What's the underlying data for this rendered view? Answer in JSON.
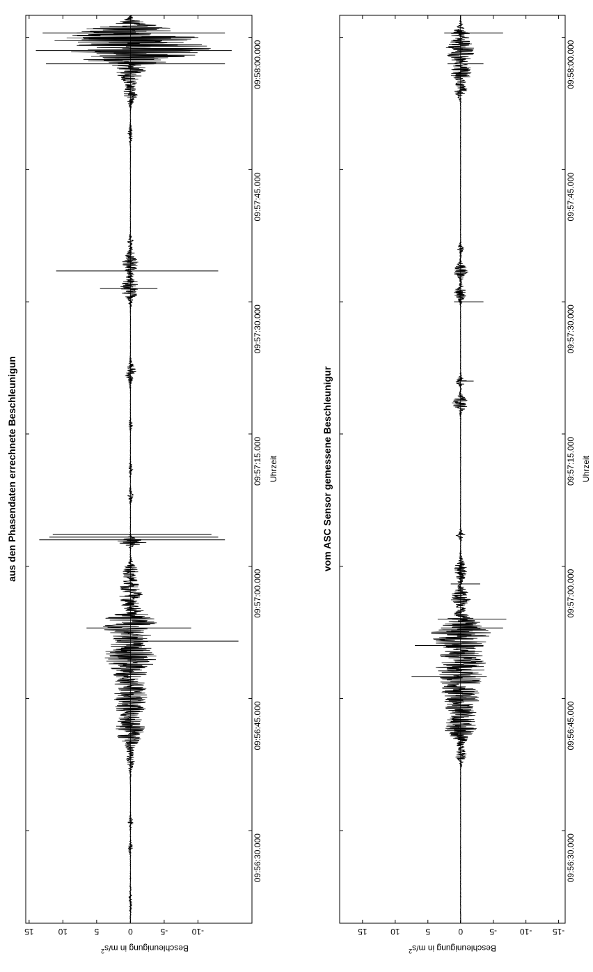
{
  "chart_data": [
    {
      "type": "line",
      "title": "aus den Phasendaten errechnete Beschleunigun",
      "xlabel": "Uhrzeit",
      "ylabel": "Beschleunigung in m/s^2",
      "x_tick_labels": [
        "09:56:30.000",
        "09:56:45.000",
        "09:57:00.000",
        "09:57:15.000",
        "09:57:30.000",
        "09:57:45.000",
        "09:58:00.000"
      ],
      "x_ticks_seconds": [
        30,
        45,
        60,
        75,
        90,
        105,
        120
      ],
      "xlim_seconds": [
        19.5,
        122.5
      ],
      "y_tick_labels": [
        "15",
        "10",
        "5",
        "0",
        "-5",
        "-10"
      ],
      "y_ticks": [
        15,
        10,
        5,
        0,
        -5,
        -10
      ],
      "ylim": [
        15.5,
        -18
      ],
      "grid": false,
      "series": [
        {
          "bursts": [
            {
              "t": 22,
              "amp": 0.15,
              "w": 1.5
            },
            {
              "t": 28,
              "amp": 0.3,
              "w": 0.6
            },
            {
              "t": 31,
              "amp": 0.4,
              "w": 0.5
            },
            {
              "t": 38,
              "amp": 0.5,
              "w": 1.0
            },
            {
              "t": 41,
              "amp": 1.2,
              "w": 1.2
            },
            {
              "t": 45,
              "amp": 2.5,
              "w": 4.0
            },
            {
              "t": 50,
              "amp": 3.3,
              "w": 2.0
            },
            {
              "t": 53.5,
              "amp": 4.2,
              "w": 1.5
            },
            {
              "t": 57,
              "amp": 1.8,
              "w": 1.5
            },
            {
              "t": 59.5,
              "amp": 1.0,
              "w": 1.0
            },
            {
              "t": 62.8,
              "amp": 2.5,
              "w": 0.4
            },
            {
              "t": 68,
              "amp": 0.4,
              "w": 0.6
            },
            {
              "t": 71,
              "amp": 0.3,
              "w": 0.6
            },
            {
              "t": 76,
              "amp": 0.3,
              "w": 0.5
            },
            {
              "t": 82,
              "amp": 0.9,
              "w": 1.0
            },
            {
              "t": 91.5,
              "amp": 1.5,
              "w": 1.2
            },
            {
              "t": 94.5,
              "amp": 1.2,
              "w": 1.3
            },
            {
              "t": 97,
              "amp": 0.4,
              "w": 0.5
            },
            {
              "t": 109,
              "amp": 0.4,
              "w": 0.8
            },
            {
              "t": 113.5,
              "amp": 1.0,
              "w": 1.0
            },
            {
              "t": 116,
              "amp": 2.0,
              "w": 1.2
            },
            {
              "t": 118,
              "amp": 8.0,
              "w": 1.0
            },
            {
              "t": 119.5,
              "amp": 11.0,
              "w": 1.2
            },
            {
              "t": 121,
              "amp": 4.0,
              "w": 0.8
            }
          ],
          "spikes": [
            {
              "t": 51.5,
              "min": -16.0,
              "max": 2.0
            },
            {
              "t": 53.0,
              "min": -9.0,
              "max": 6.5
            },
            {
              "t": 63.0,
              "min": -14.0,
              "max": 13.5
            },
            {
              "t": 63.3,
              "min": -13.0,
              "max": 12.0
            },
            {
              "t": 63.6,
              "min": -12.0,
              "max": 11.5
            },
            {
              "t": 91.5,
              "min": -4.0,
              "max": 4.5
            },
            {
              "t": 93.5,
              "min": -13.0,
              "max": 11.0
            },
            {
              "t": 117.0,
              "min": -14.0,
              "max": 12.5
            },
            {
              "t": 118.5,
              "min": -15.0,
              "max": 14.0
            },
            {
              "t": 120.5,
              "min": -14.0,
              "max": 13.0
            }
          ]
        }
      ]
    },
    {
      "type": "line",
      "title": "vom ASC Sensor gemessene Beschleunigur",
      "xlabel": "Uhrzeit",
      "ylabel": "Beschleunigung in m/s^2",
      "x_tick_labels": [
        "09:56:30.000",
        "09:56:45.000",
        "09:57:00.000",
        "09:57:15.000",
        "09:57:30.000",
        "09:57:45.000",
        "09:58:00.000"
      ],
      "x_ticks_seconds": [
        30,
        45,
        60,
        75,
        90,
        105,
        120
      ],
      "xlim_seconds": [
        19.5,
        122.5
      ],
      "y_tick_labels": [
        "15",
        "10",
        "5",
        "0",
        "-5",
        "-10",
        "-15"
      ],
      "y_ticks": [
        15,
        10,
        5,
        0,
        -5,
        -10,
        -15
      ],
      "ylim": [
        18.5,
        -16
      ],
      "grid": false,
      "series": [
        {
          "bursts": [
            {
              "t": 38.5,
              "amp": 0.8,
              "w": 0.8
            },
            {
              "t": 41.5,
              "amp": 1.5,
              "w": 1.2
            },
            {
              "t": 45,
              "amp": 2.8,
              "w": 3.5
            },
            {
              "t": 49,
              "amp": 3.2,
              "w": 2.0
            },
            {
              "t": 52.5,
              "amp": 4.5,
              "w": 1.8
            },
            {
              "t": 56.5,
              "amp": 1.5,
              "w": 1.0
            },
            {
              "t": 59.5,
              "amp": 1.0,
              "w": 1.2
            },
            {
              "t": 63.5,
              "amp": 0.7,
              "w": 0.4
            },
            {
              "t": 78.5,
              "amp": 1.3,
              "w": 0.8
            },
            {
              "t": 81,
              "amp": 0.9,
              "w": 0.5
            },
            {
              "t": 91,
              "amp": 1.0,
              "w": 0.8
            },
            {
              "t": 93.5,
              "amp": 1.2,
              "w": 0.8
            },
            {
              "t": 96,
              "amp": 0.5,
              "w": 0.5
            },
            {
              "t": 114,
              "amp": 1.0,
              "w": 0.8
            },
            {
              "t": 116,
              "amp": 1.8,
              "w": 1.0
            },
            {
              "t": 118.5,
              "amp": 2.5,
              "w": 1.2
            },
            {
              "t": 120.5,
              "amp": 1.2,
              "w": 0.8
            }
          ],
          "spikes": [
            {
              "t": 47.5,
              "min": -4.0,
              "max": 7.5
            },
            {
              "t": 51.0,
              "min": -3.5,
              "max": 7.0
            },
            {
              "t": 53.0,
              "min": -6.5,
              "max": 3.0
            },
            {
              "t": 54.0,
              "min": -7.0,
              "max": 3.5
            },
            {
              "t": 58.0,
              "min": -3.0,
              "max": 1.5
            },
            {
              "t": 81.0,
              "min": -2.0,
              "max": 0.5
            },
            {
              "t": 90.0,
              "min": -3.5,
              "max": 1.0
            },
            {
              "t": 117.0,
              "min": -3.5,
              "max": 2.0
            },
            {
              "t": 120.5,
              "min": -6.5,
              "max": 2.5
            }
          ]
        }
      ]
    }
  ]
}
